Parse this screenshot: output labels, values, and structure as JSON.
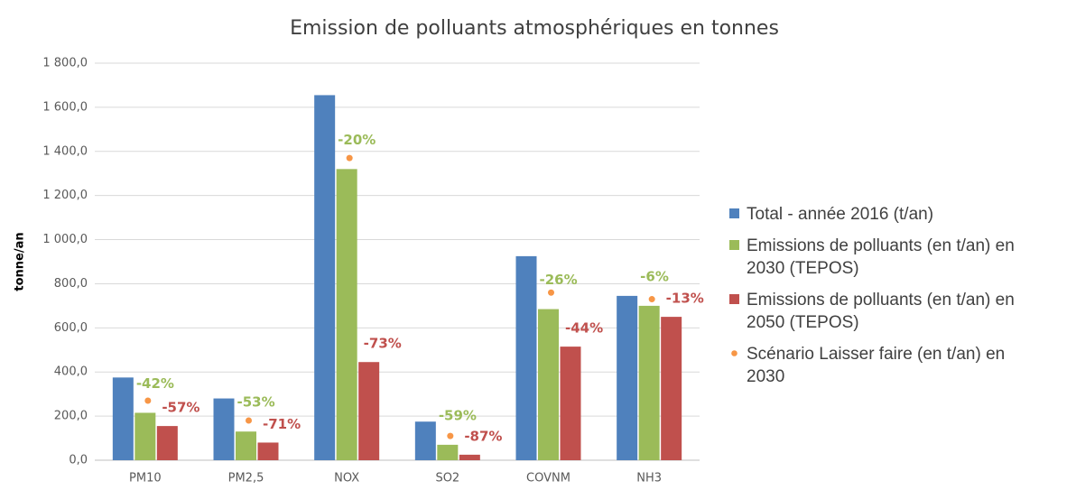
{
  "chart_data": {
    "type": "bar",
    "title": "Emission de polluants atmosphériques en tonnes",
    "y_label": "tonne/an",
    "categories": [
      "PM10",
      "PM2,5",
      "NOX",
      "SO2",
      "COVNM",
      "NH3"
    ],
    "series": [
      {
        "name": "Total - année 2016 (t/an)",
        "color": "#4f81bd",
        "values": [
          375,
          280,
          1655,
          175,
          925,
          745
        ]
      },
      {
        "name": "Emissions de polluants (en t/an) en 2030 (TEPOS)",
        "color": "#9bbb59",
        "values": [
          215,
          130,
          1320,
          70,
          685,
          700
        ],
        "change_labels": [
          "-42%",
          "-53%",
          "-20%",
          "-59%",
          "-26%",
          "-6%"
        ]
      },
      {
        "name": "Emissions de polluants (en t/an) en 2050 (TEPOS)",
        "color": "#c0504d",
        "values": [
          155,
          80,
          445,
          25,
          515,
          650
        ],
        "change_labels": [
          "-57%",
          "-71%",
          "-73%",
          "-87%",
          "-44%",
          "-13%"
        ]
      },
      {
        "name": "Scénario Laisser faire (en t/an) en 2030",
        "color": "#f79646",
        "marker": "dot",
        "values": [
          270,
          180,
          1370,
          110,
          760,
          730
        ]
      }
    ],
    "ylim": [
      0,
      1800
    ],
    "yticks": [
      {
        "value": 0,
        "label": "0,0"
      },
      {
        "value": 200,
        "label": "200,0"
      },
      {
        "value": 400,
        "label": "400,0"
      },
      {
        "value": 600,
        "label": "600,0"
      },
      {
        "value": 800,
        "label": "800,0"
      },
      {
        "value": 1000,
        "label": "1 000,0"
      },
      {
        "value": 1200,
        "label": "1 200,0"
      },
      {
        "value": 1400,
        "label": "1 400,0"
      },
      {
        "value": 1600,
        "label": "1 600,0"
      },
      {
        "value": 1800,
        "label": "1 800,0"
      }
    ],
    "grid": true,
    "legend": "right"
  }
}
